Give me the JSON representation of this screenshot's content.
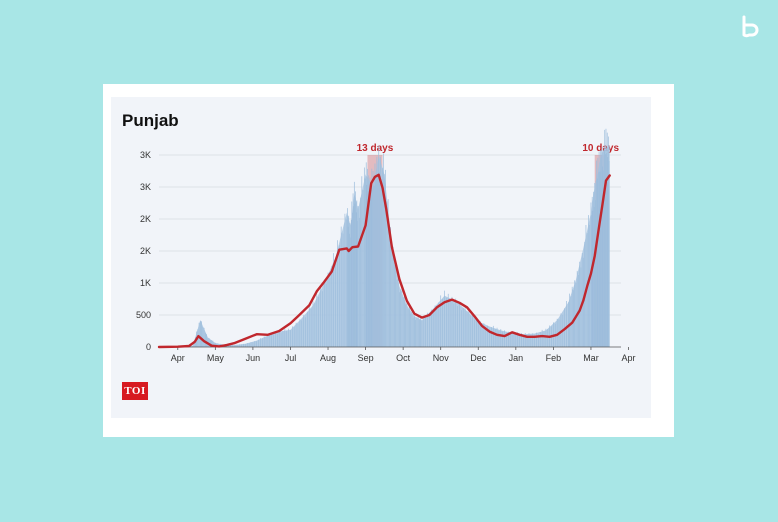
{
  "brand": {
    "logo_icon": "b-logo-icon"
  },
  "source_logo": {
    "text": "TOI",
    "color": "#d71a21"
  },
  "chart_data": {
    "type": "area",
    "title": "Punjab",
    "xlabel": "",
    "ylabel": "",
    "x_tick_labels": [
      "Apr",
      "May",
      "Jun",
      "Jul",
      "Aug",
      "Sep",
      "Oct",
      "Nov",
      "Dec",
      "Jan",
      "Feb",
      "Mar",
      "Apr"
    ],
    "y_tick_labels": [
      "0",
      "500",
      "1K",
      "2K",
      "2K",
      "3K",
      "3K"
    ],
    "ylim": [
      0,
      3000
    ],
    "grid": true,
    "colors": {
      "bars": "#a9c6e2",
      "line": "#c0272d",
      "highlight": "#c0272d",
      "annotation": "#c0272d",
      "panel_bg": "#f1f4f9"
    },
    "series": [
      {
        "kind": "daily-cases-bars",
        "x": [
          0,
          0.5,
          0.9,
          1.1,
          1.3,
          1.5,
          1.7,
          2,
          2.3,
          2.6,
          2.9,
          3.2,
          3.5,
          3.8,
          4.1,
          4.4,
          4.7,
          5,
          5.1,
          5.2,
          5.3,
          5.5,
          5.6,
          5.7,
          5.85,
          6,
          6.2,
          6.4,
          6.6,
          6.8,
          7,
          7.3,
          7.6,
          7.9,
          8.2,
          8.5,
          8.8,
          9.1,
          9.4,
          9.7,
          10,
          10.3,
          10.6,
          10.9,
          11.1,
          11.3,
          11.5,
          11.6,
          11.7,
          11.8,
          11.9,
          12
        ],
        "values": [
          5,
          10,
          20,
          420,
          150,
          60,
          40,
          30,
          50,
          100,
          180,
          240,
          270,
          450,
          650,
          1000,
          1400,
          2100,
          1900,
          2400,
          2150,
          2700,
          2600,
          2500,
          3000,
          2700,
          1600,
          950,
          650,
          480,
          420,
          600,
          800,
          720,
          560,
          400,
          320,
          260,
          220,
          200,
          210,
          260,
          420,
          700,
          1050,
          1550,
          2100,
          2500,
          2800,
          3050,
          3100,
          3150
        ]
      },
      {
        "kind": "seven-day-average-line",
        "x": [
          0,
          0.5,
          0.8,
          0.95,
          1.05,
          1.2,
          1.4,
          1.6,
          1.8,
          2,
          2.3,
          2.6,
          2.9,
          3.2,
          3.5,
          3.7,
          4,
          4.2,
          4.4,
          4.6,
          4.8,
          5,
          5.05,
          5.15,
          5.3,
          5.5,
          5.65,
          5.75,
          5.85,
          5.95,
          6.05,
          6.2,
          6.4,
          6.6,
          6.8,
          7,
          7.2,
          7.4,
          7.6,
          7.8,
          8,
          8.2,
          8.4,
          8.6,
          8.8,
          9,
          9.2,
          9.4,
          9.6,
          9.8,
          10,
          10.2,
          10.4,
          10.6,
          10.8,
          11,
          11.2,
          11.3,
          11.4,
          11.5,
          11.6,
          11.7,
          11.8,
          11.9,
          12
        ],
        "values": [
          0,
          5,
          15,
          80,
          170,
          90,
          20,
          10,
          30,
          60,
          130,
          200,
          190,
          250,
          370,
          480,
          650,
          870,
          1020,
          1180,
          1520,
          1540,
          1500,
          1560,
          1570,
          1900,
          2560,
          2660,
          2690,
          2490,
          2160,
          1560,
          1060,
          720,
          520,
          460,
          500,
          620,
          700,
          740,
          690,
          620,
          480,
          330,
          240,
          190,
          170,
          230,
          190,
          160,
          160,
          170,
          160,
          190,
          280,
          380,
          570,
          730,
          950,
          1150,
          1420,
          1820,
          2200,
          2600,
          2680
        ]
      }
    ],
    "annotations": [
      {
        "label": "13 days",
        "x_start": 5.55,
        "x_end": 5.95
      },
      {
        "label": "10 days",
        "x_start": 11.6,
        "x_end": 11.92
      }
    ]
  }
}
